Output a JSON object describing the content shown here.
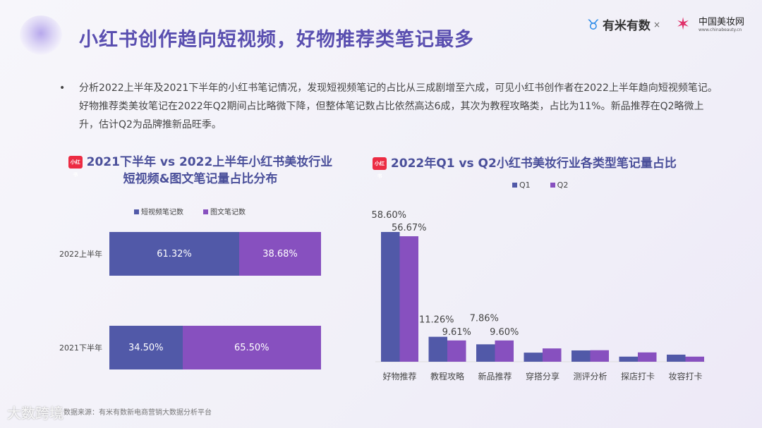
{
  "header": {
    "title": "小红书创作趋向短视频，好物推荐类笔记最多",
    "logo_youmi": "有米有数",
    "times": "×",
    "logo_chinabeauty": "中国美妆网",
    "logo_chinabeauty_url": "www.chinabeauty.cn"
  },
  "summary": {
    "bullet": "•",
    "text": "分析2022上半年及2021下半年的小红书笔记情况，发现短视频笔记的占比从三成剧增至六成，可见小红书创作者在2022上半年趋向短视频笔记。好物推荐类美妆笔记在2022年Q2期间占比略微下降，但整体笔记数占比依然高达6成，其次为教程攻略类，占比为11%。新品推荐在Q2略微上升，估计Q2为品牌推新品旺季。"
  },
  "badge": "小红书",
  "chart_data": [
    {
      "type": "bar",
      "orientation": "horizontal",
      "stacked": true,
      "title_line1": "2021下半年 vs 2022上半年小红书美妆行业",
      "title_line2": "短视频&图文笔记量占比分布",
      "categories": [
        "2022上半年",
        "2021下半年"
      ],
      "series": [
        {
          "name": "短视频笔记数",
          "values": [
            61.32,
            34.5
          ],
          "labels": [
            "61.32%",
            "34.50%"
          ],
          "color": "#5159a8"
        },
        {
          "name": "图文笔记数",
          "values": [
            38.68,
            65.5
          ],
          "labels": [
            "38.68%",
            "65.50%"
          ],
          "color": "#8750bf"
        }
      ],
      "legend": "top"
    },
    {
      "type": "bar",
      "title": "2022年Q1 vs Q2小红书美妆行业各类型笔记量占比",
      "categories": [
        "好物推荐",
        "教程攻略",
        "新品推荐",
        "穿搭分享",
        "测评分析",
        "探店打卡",
        "妆容打卡"
      ],
      "series": [
        {
          "name": "Q1",
          "values": [
            58.6,
            11.26,
            7.86,
            4.1,
            5.1,
            2.3,
            3.2
          ],
          "labels": [
            "58.60%",
            "11.26%",
            "7.86%",
            "",
            "",
            "",
            ""
          ],
          "color": "#5159a8"
        },
        {
          "name": "Q2",
          "values": [
            56.67,
            9.61,
            9.6,
            6.0,
            5.2,
            4.2,
            2.3
          ],
          "labels": [
            "56.67%",
            "9.61%",
            "9.60%",
            "",
            "",
            "",
            ""
          ],
          "color": "#8750bf"
        }
      ],
      "legend": "top",
      "ylim": [
        0,
        60
      ]
    }
  ],
  "footer": {
    "source": "数据来源：有米有数新电商营销大数据分析平台",
    "watermark": "大数跨境"
  }
}
